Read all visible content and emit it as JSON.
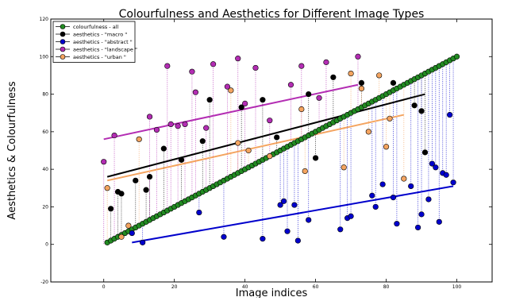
{
  "chart_data": {
    "type": "scatter",
    "title": "Colourfulness and Aesthetics for Different Image Types",
    "xlabel": "Image indices",
    "ylabel": "Aesthetics & Colourfulness",
    "xlim": [
      -15,
      110
    ],
    "ylim": [
      -20,
      120
    ],
    "x_ticks": [
      0,
      20,
      40,
      60,
      80,
      100
    ],
    "y_ticks": [
      -20,
      0,
      20,
      40,
      60,
      80,
      100,
      120
    ],
    "grid": false,
    "legend_position": "top-left",
    "colourfulness": {
      "name": "colourfulness - all",
      "color": "#228b22",
      "x_start": 1,
      "x_end": 100,
      "y_start": 1,
      "y_end": 100,
      "count": 100
    },
    "series": [
      {
        "name": "aesthetics -  \"macro \"",
        "color": "#000000",
        "points": [
          [
            2,
            19
          ],
          [
            4,
            28
          ],
          [
            5,
            27
          ],
          [
            9,
            34
          ],
          [
            12,
            29
          ],
          [
            13,
            36
          ],
          [
            17,
            51
          ],
          [
            22,
            45
          ],
          [
            28,
            55
          ],
          [
            30,
            77
          ],
          [
            39,
            73
          ],
          [
            45,
            77
          ],
          [
            49,
            57
          ],
          [
            58,
            80
          ],
          [
            60,
            46
          ],
          [
            65,
            89
          ],
          [
            73,
            86
          ],
          [
            82,
            86
          ],
          [
            88,
            74
          ],
          [
            90,
            71
          ],
          [
            91,
            49
          ]
        ],
        "trend": {
          "x": [
            1,
            91
          ],
          "y": [
            36,
            80
          ]
        }
      },
      {
        "name": "aesthetics -  \"abstract \"",
        "color": "#0000cc",
        "points": [
          [
            8,
            6
          ],
          [
            11,
            1
          ],
          [
            27,
            17
          ],
          [
            34,
            4
          ],
          [
            45,
            3
          ],
          [
            50,
            21
          ],
          [
            51,
            23
          ],
          [
            52,
            7
          ],
          [
            54,
            21
          ],
          [
            55,
            2
          ],
          [
            58,
            13
          ],
          [
            67,
            8
          ],
          [
            69,
            14
          ],
          [
            70,
            15
          ],
          [
            76,
            26
          ],
          [
            77,
            20
          ],
          [
            79,
            32
          ],
          [
            82,
            25
          ],
          [
            83,
            11
          ],
          [
            87,
            31
          ],
          [
            89,
            9
          ],
          [
            90,
            16
          ],
          [
            92,
            24
          ],
          [
            93,
            43
          ],
          [
            94,
            41
          ],
          [
            95,
            12
          ],
          [
            96,
            38
          ],
          [
            97,
            37
          ],
          [
            98,
            69
          ],
          [
            99,
            33
          ]
        ],
        "trend": {
          "x": [
            8,
            99
          ],
          "y": [
            1,
            31
          ]
        }
      },
      {
        "name": "aesthetics -  \"landscape \"",
        "color": "#b32db3",
        "points": [
          [
            0,
            44
          ],
          [
            3,
            58
          ],
          [
            13,
            68
          ],
          [
            15,
            61
          ],
          [
            18,
            95
          ],
          [
            19,
            64
          ],
          [
            21,
            63
          ],
          [
            23,
            64
          ],
          [
            25,
            92
          ],
          [
            26,
            81
          ],
          [
            29,
            62
          ],
          [
            31,
            96
          ],
          [
            35,
            84
          ],
          [
            38,
            99
          ],
          [
            40,
            75
          ],
          [
            43,
            94
          ],
          [
            47,
            66
          ],
          [
            53,
            85
          ],
          [
            56,
            95
          ],
          [
            61,
            78
          ],
          [
            63,
            97
          ],
          [
            72,
            100
          ]
        ],
        "trend": {
          "x": [
            0,
            72
          ],
          "y": [
            56,
            85
          ]
        }
      },
      {
        "name": "aesthetics -  \"urban \"",
        "color": "#f4a460",
        "points": [
          [
            1,
            30
          ],
          [
            5,
            4
          ],
          [
            7,
            10
          ],
          [
            10,
            56
          ],
          [
            36,
            82
          ],
          [
            38,
            54
          ],
          [
            41,
            50
          ],
          [
            47,
            47
          ],
          [
            56,
            72
          ],
          [
            57,
            39
          ],
          [
            68,
            41
          ],
          [
            70,
            91
          ],
          [
            73,
            83
          ],
          [
            75,
            60
          ],
          [
            78,
            90
          ],
          [
            80,
            52
          ],
          [
            81,
            67
          ],
          [
            85,
            35
          ]
        ],
        "trend": {
          "x": [
            1,
            85
          ],
          "y": [
            34,
            69
          ]
        }
      }
    ]
  }
}
